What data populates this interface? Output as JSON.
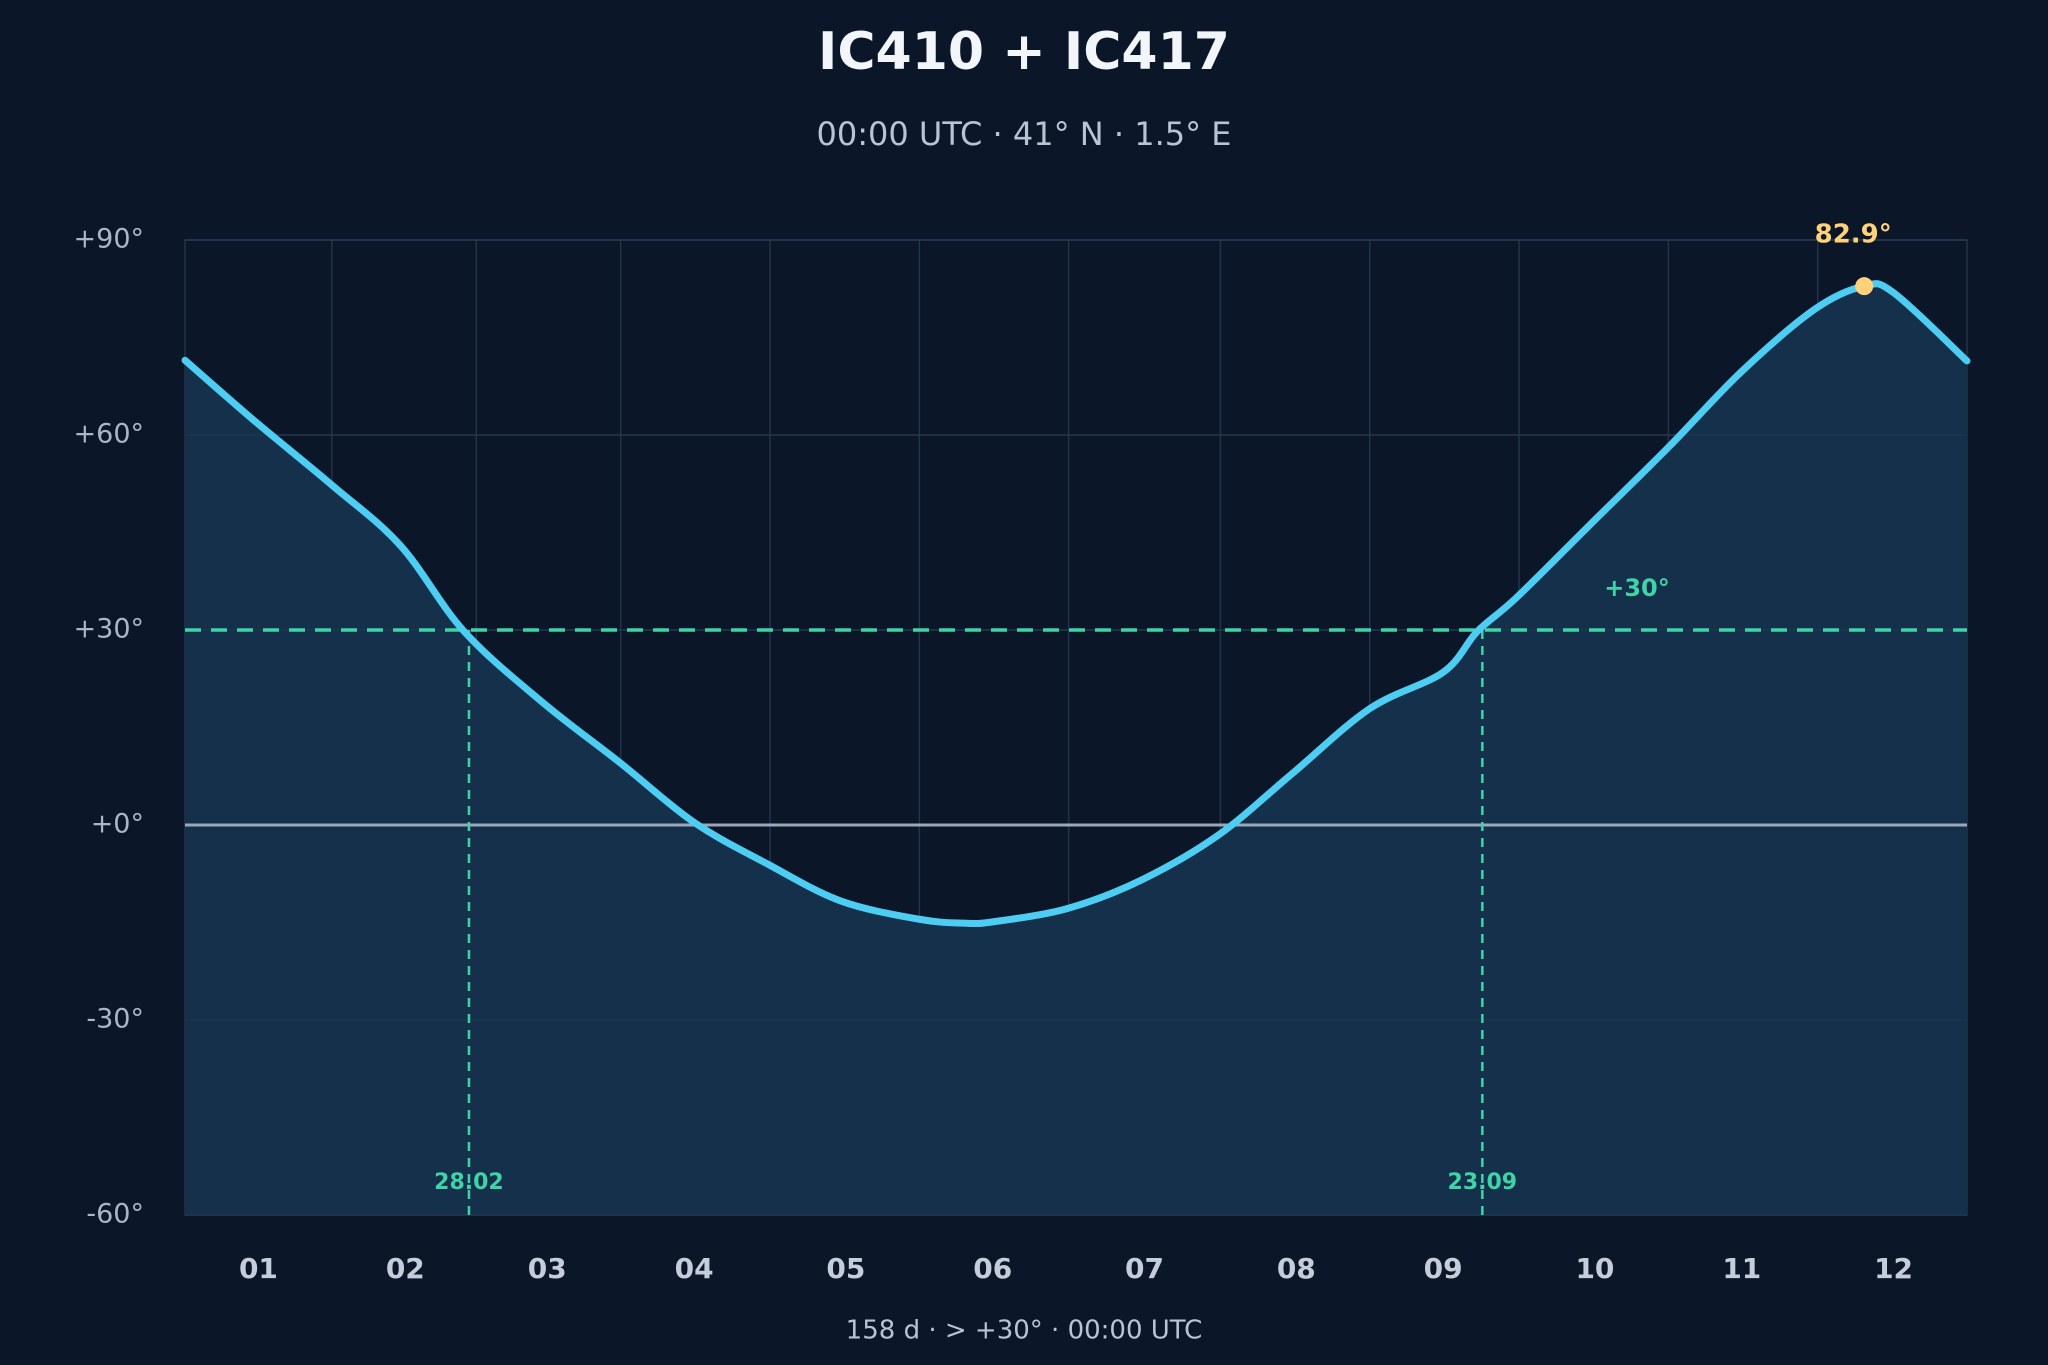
{
  "chart_data": {
    "type": "line",
    "title": "IC410 + IC417",
    "subtitle": "00:00 UTC · 41° N · 1.5° E",
    "footer": "158 d  ·  > +30°  ·  00:00 UTC",
    "x": [
      1,
      15,
      31,
      45,
      58,
      74,
      90,
      105,
      120,
      135,
      151,
      160,
      166,
      181,
      196,
      212,
      227,
      243,
      258,
      265,
      273,
      288,
      304,
      319,
      334,
      344,
      350,
      365
    ],
    "series": [
      {
        "color": "#4dcdf2",
        "fill": "#15304a",
        "values": [
          71.5,
          62.3,
          52.3,
          43,
          29.8,
          18.9,
          9.5,
          0.4,
          -6,
          -11.7,
          -14.5,
          -15.1,
          -14.9,
          -12.9,
          -8.6,
          -1.6,
          7.8,
          17.9,
          23.5,
          29.8,
          35,
          46.2,
          58.1,
          69.8,
          79.4,
          82.9,
          81.9,
          71.4
        ]
      }
    ],
    "xlim": [
      1,
      365
    ],
    "xticks": [
      {
        "value": 16,
        "label": "01"
      },
      {
        "value": 46,
        "label": "02"
      },
      {
        "value": 75,
        "label": "03"
      },
      {
        "value": 105,
        "label": "04"
      },
      {
        "value": 136,
        "label": "05"
      },
      {
        "value": 166,
        "label": "06"
      },
      {
        "value": 197,
        "label": "07"
      },
      {
        "value": 228,
        "label": "08"
      },
      {
        "value": 258,
        "label": "09"
      },
      {
        "value": 289,
        "label": "10"
      },
      {
        "value": 319,
        "label": "11"
      },
      {
        "value": 350,
        "label": "12"
      }
    ],
    "ylim": [
      -60,
      90
    ],
    "yticks": [
      {
        "value": 90,
        "label": "+90°"
      },
      {
        "value": 60,
        "label": "+60°"
      },
      {
        "value": 30,
        "label": "+30°"
      },
      {
        "value": 0,
        "label": "+0°"
      },
      {
        "value": -30,
        "label": "-30°"
      },
      {
        "value": -60,
        "label": "-60°"
      }
    ],
    "grid": true,
    "threshold": {
      "value": 30,
      "label": "+30°",
      "color": "#3fd3a8"
    },
    "crossings": [
      {
        "x": 59,
        "label": "28.02"
      },
      {
        "x": 266,
        "label": "23.09"
      }
    ],
    "peak": {
      "x": 344,
      "value": 82.9,
      "label": "82.9°",
      "color": "#ffd27a"
    }
  }
}
